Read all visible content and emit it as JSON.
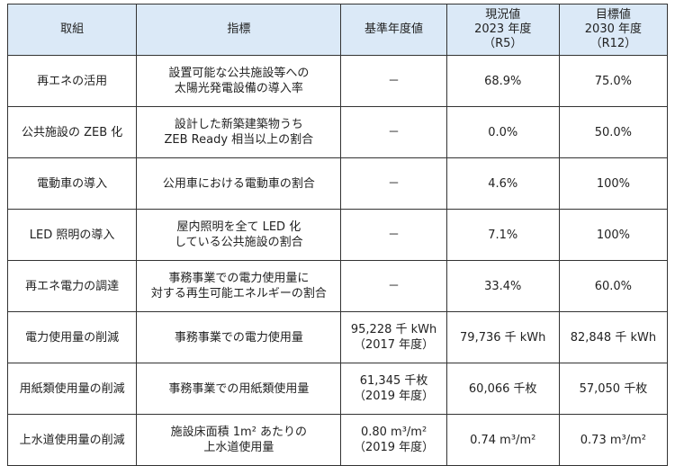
{
  "header": {
    "col1": "取組",
    "col2": "指標",
    "col3": "基準年度値",
    "col4": [
      "現況値",
      "2023 年度",
      "（R5）"
    ],
    "col5": [
      "目標値",
      "2030 年度",
      "（R12）"
    ]
  },
  "rows": [
    {
      "action": "再エネの活用",
      "indicator": [
        "設置可能な公共施設等への",
        "太陽光発電設備の導入率"
      ],
      "baseline": [
        "－"
      ],
      "current": "68.9%",
      "target": "75.0%"
    },
    {
      "action": "公共施設の ZEB 化",
      "indicator": [
        "設計した新築建築物うち",
        "ZEB Ready 相当以上の割合"
      ],
      "baseline": [
        "－"
      ],
      "current": "0.0%",
      "target": "50.0%"
    },
    {
      "action": "電動車の導入",
      "indicator": [
        "公用車における電動車の割合"
      ],
      "baseline": [
        "－"
      ],
      "current": "4.6%",
      "target": "100%"
    },
    {
      "action": "LED 照明の導入",
      "indicator": [
        "屋内照明を全て LED 化",
        "している公共施設の割合"
      ],
      "baseline": [
        "－"
      ],
      "current": "7.1%",
      "target": "100%"
    },
    {
      "action": "再エネ電力の調達",
      "indicator": [
        "事務事業での電力使用量に",
        "対する再生可能エネルギーの割合"
      ],
      "baseline": [
        "－"
      ],
      "current": "33.4%",
      "target": "60.0%"
    },
    {
      "action": "電力使用量の削減",
      "indicator": [
        "事務事業での電力使用量"
      ],
      "baseline": [
        "95,228 千 kWh",
        "（2017 年度）"
      ],
      "current": "79,736 千 kWh",
      "target": "82,848 千 kWh"
    },
    {
      "action": "用紙類使用量の削減",
      "indicator": [
        "事務事業での用紙類使用量"
      ],
      "baseline": [
        "61,345 千枚",
        "（2019 年度）"
      ],
      "current": "60,066 千枚",
      "target": "57,050 千枚"
    },
    {
      "action": "上水道使用量の削減",
      "indicator": [
        "施設床面積 1m² あたりの",
        "上水道使用量"
      ],
      "baseline": [
        "0.80 m³/m²",
        "（2019 年度）"
      ],
      "current": "0.74 m³/m²",
      "target": "0.73 m³/m²"
    }
  ]
}
